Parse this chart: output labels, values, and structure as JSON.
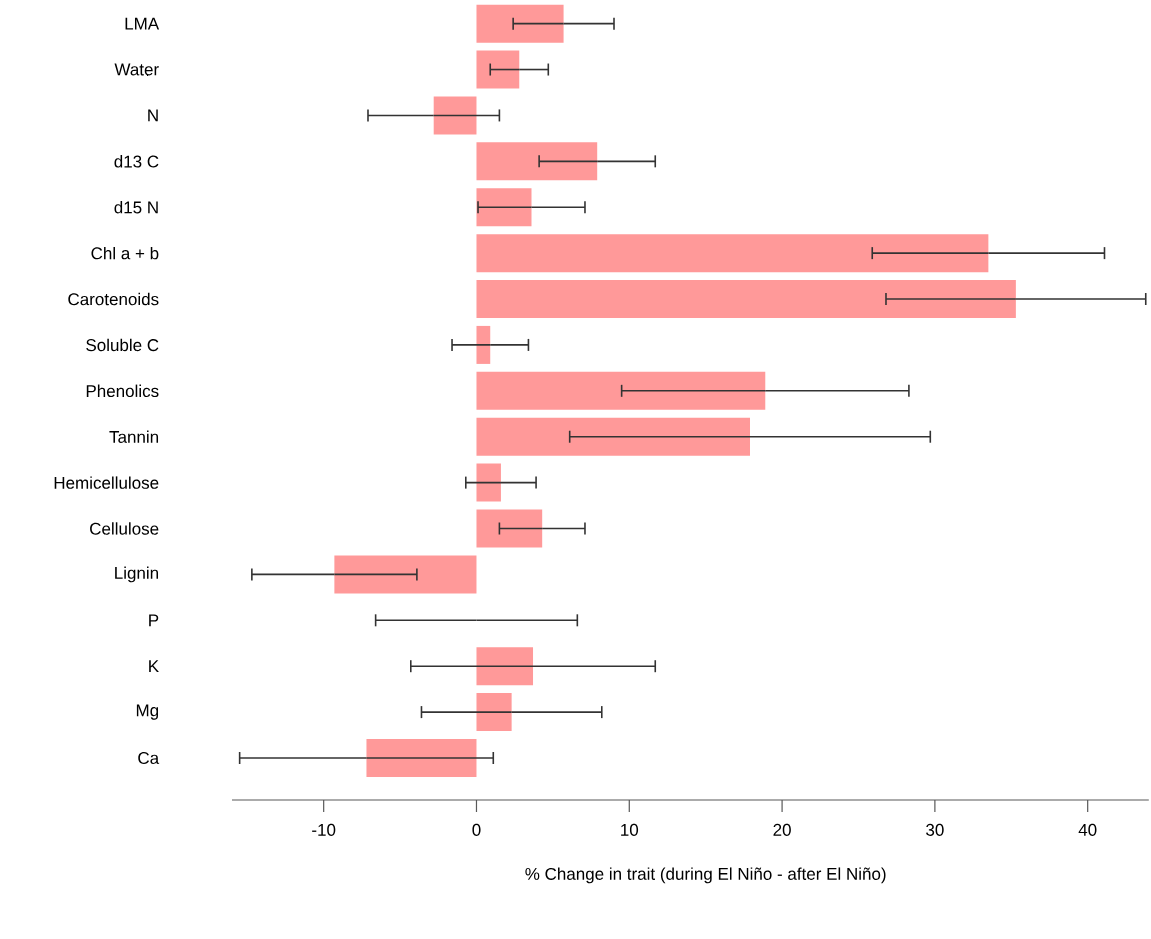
{
  "chart_data": {
    "type": "bar",
    "orientation": "horizontal",
    "xlabel": "% Change in trait (during El Niño - after El Niño)",
    "categories": [
      "LMA",
      "Water",
      "N",
      "d13 C",
      "d15 N",
      "Chl a + b",
      "Carotenoids",
      "Soluble C",
      "Phenolics",
      "Tannin",
      "Hemicellulose",
      "Cellulose",
      "Lignin",
      "P",
      "K",
      "Mg",
      "Ca"
    ],
    "values": [
      5.7,
      2.8,
      -2.8,
      7.9,
      3.6,
      33.5,
      35.3,
      0.9,
      18.9,
      17.9,
      1.6,
      4.3,
      -9.3,
      0,
      3.7,
      2.3,
      -7.2
    ],
    "errors": [
      3.3,
      1.9,
      4.3,
      3.8,
      3.5,
      7.6,
      8.5,
      2.5,
      9.4,
      11.8,
      2.3,
      2.8,
      5.4,
      6.6,
      8.0,
      5.9,
      8.3
    ],
    "color": "#ff9999",
    "xlim": [
      -16,
      44
    ],
    "xticks": [
      -10,
      0,
      10,
      20,
      30,
      40
    ]
  }
}
